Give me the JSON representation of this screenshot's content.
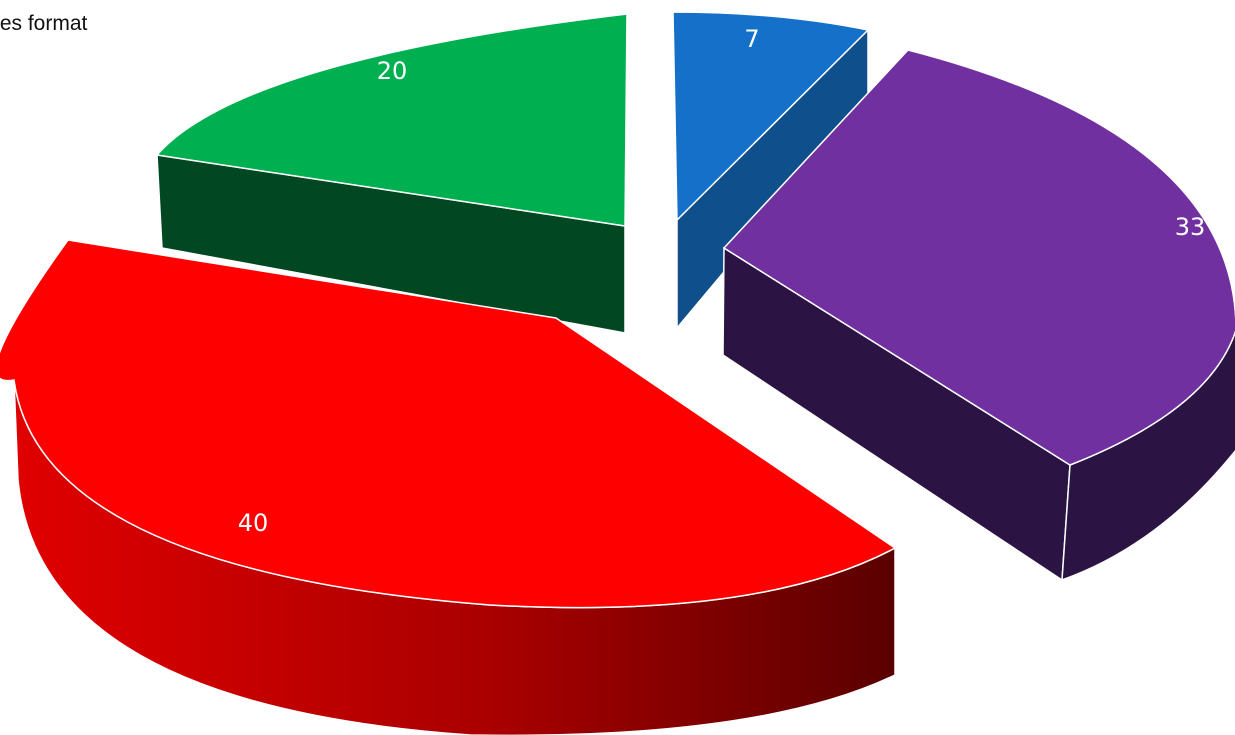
{
  "chart_data": {
    "type": "pie",
    "title": "tes format",
    "values": [
      7,
      33,
      40,
      20
    ],
    "data_labels": [
      "7",
      "33",
      "40",
      "20"
    ],
    "colors": [
      "#1570c9",
      "#7030a0",
      "#ff0000",
      "#00b050"
    ],
    "style": "3d-exploded",
    "legend": false
  }
}
